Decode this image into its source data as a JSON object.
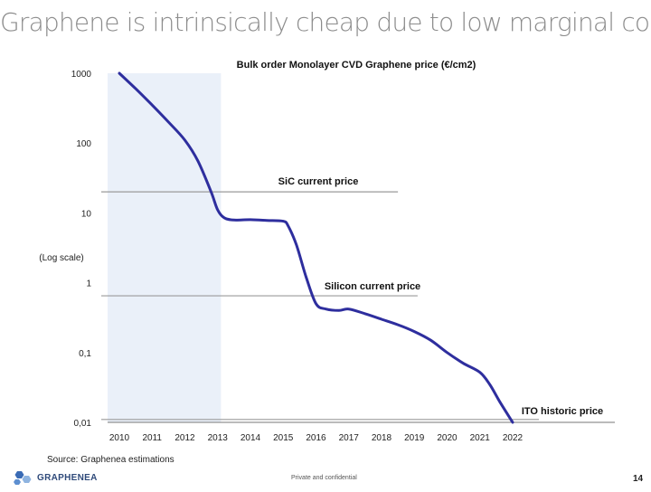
{
  "slide": {
    "title": "Graphene is intrinsically cheap due to low marginal cost!",
    "source": "Source: Graphenea estimations",
    "logo_text": "GRAPHENEA",
    "footer": "Private and confidential",
    "page_number": "14"
  },
  "chart_data": {
    "type": "line",
    "title": "Bulk order Monolayer CVD Graphene price (€/cm2)",
    "ylabel": "(Log scale)",
    "xlabel": "",
    "y_scale": "log",
    "ylim": [
      0.01,
      1000
    ],
    "xlim": [
      2010,
      2022
    ],
    "x_ticks": [
      "2010",
      "2011",
      "2012",
      "2013",
      "2014",
      "2015",
      "2016",
      "2017",
      "2018",
      "2019",
      "2020",
      "2021",
      "2022"
    ],
    "y_ticks": [
      {
        "value": 1000,
        "label": "1000"
      },
      {
        "value": 100,
        "label": "100"
      },
      {
        "value": 10,
        "label": "10"
      },
      {
        "value": 1,
        "label": "1"
      },
      {
        "value": 0.1,
        "label": "0,1"
      },
      {
        "value": 0.01,
        "label": "0,01"
      }
    ],
    "shaded_x_range": [
      2010,
      2013.1
    ],
    "series": [
      {
        "name": "",
        "color": "#2e2e9e",
        "x": [
          2010,
          2010.5,
          2011,
          2011.5,
          2012,
          2012.4,
          2012.8,
          2013,
          2013.2,
          2013.5,
          2014,
          2014.5,
          2015,
          2015.15,
          2015.4,
          2015.7,
          2016,
          2016.3,
          2016.7,
          2017,
          2017.5,
          2018,
          2018.5,
          2019,
          2019.5,
          2020,
          2020.5,
          2021,
          2021.3,
          2021.6,
          2022
        ],
        "y": [
          1000,
          600,
          350,
          200,
          110,
          55,
          20,
          11,
          8.5,
          7.9,
          8,
          7.8,
          7.6,
          6.5,
          3.5,
          1.2,
          0.5,
          0.42,
          0.4,
          0.42,
          0.36,
          0.3,
          0.25,
          0.2,
          0.15,
          0.1,
          0.07,
          0.052,
          0.035,
          0.02,
          0.01
        ]
      }
    ],
    "reference_lines": [
      {
        "label": "SiC current price",
        "value": 20,
        "x_end": 2018.5
      },
      {
        "label": "Silicon current price",
        "value": 0.65,
        "x_end": 2019.1
      },
      {
        "label": "ITO historic price",
        "value": 0.011,
        "x_end": 2022.8
      }
    ],
    "grid": false,
    "legend": "none"
  }
}
